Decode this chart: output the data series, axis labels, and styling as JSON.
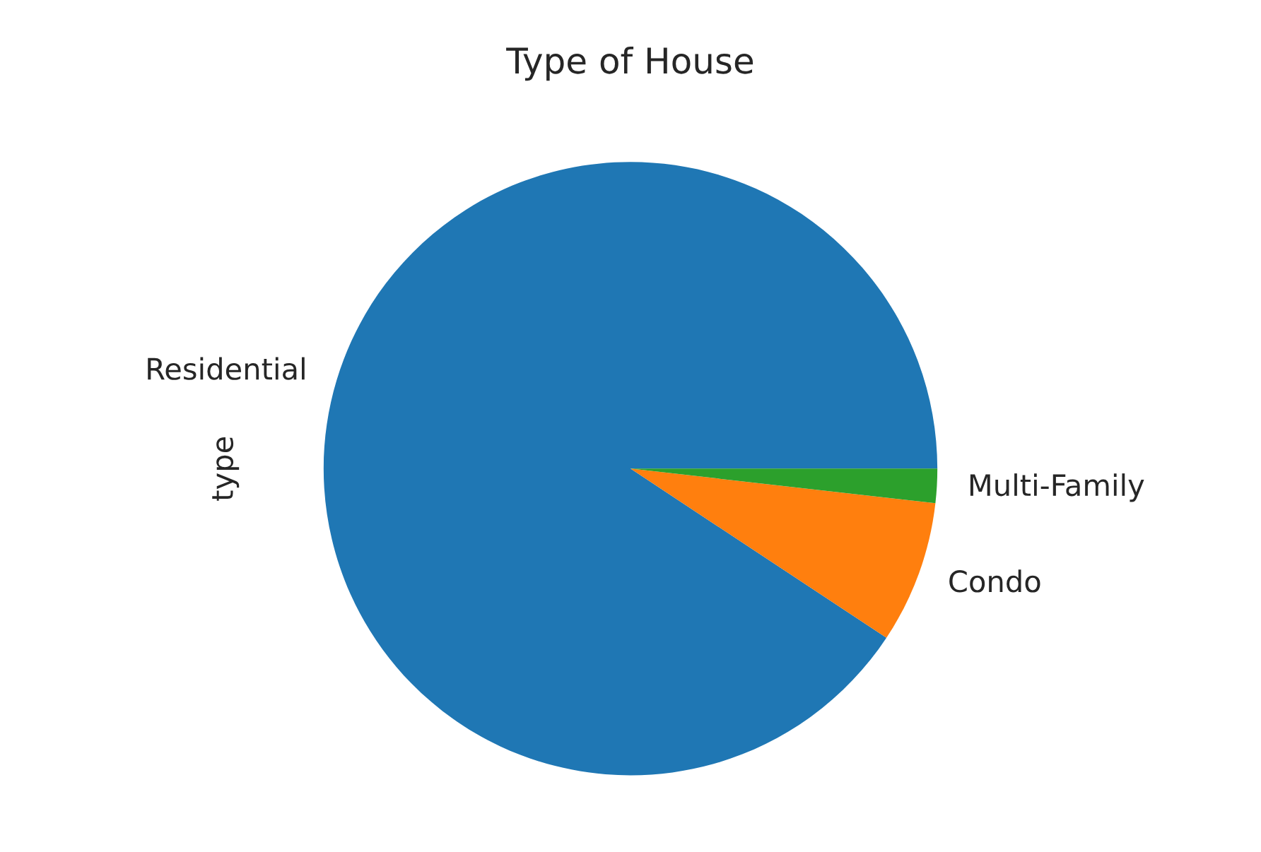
{
  "chart_data": {
    "type": "pie",
    "title": "Type of House",
    "ylabel": "type",
    "categories": [
      "Residential",
      "Condo",
      "Multi-Family"
    ],
    "values": [
      90.7,
      7.5,
      1.8
    ],
    "colors": [
      "#1f77b4",
      "#ff7f0e",
      "#2ca02c"
    ]
  }
}
